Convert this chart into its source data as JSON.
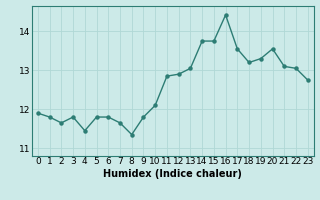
{
  "x": [
    0,
    1,
    2,
    3,
    4,
    5,
    6,
    7,
    8,
    9,
    10,
    11,
    12,
    13,
    14,
    15,
    16,
    17,
    18,
    19,
    20,
    21,
    22,
    23
  ],
  "y": [
    11.9,
    11.8,
    11.65,
    11.8,
    11.45,
    11.8,
    11.8,
    11.65,
    11.35,
    11.8,
    12.1,
    12.85,
    12.9,
    13.05,
    13.75,
    13.75,
    14.42,
    13.55,
    13.2,
    13.3,
    13.55,
    13.1,
    13.05,
    12.75
  ],
  "line_color": "#2d7d74",
  "bg_color": "#cceae8",
  "grid_color": "#b0d8d5",
  "xlabel": "Humidex (Indice chaleur)",
  "ylim": [
    10.8,
    14.65
  ],
  "yticks": [
    11,
    12,
    13,
    14
  ],
  "xticks": [
    0,
    1,
    2,
    3,
    4,
    5,
    6,
    7,
    8,
    9,
    10,
    11,
    12,
    13,
    14,
    15,
    16,
    17,
    18,
    19,
    20,
    21,
    22,
    23
  ],
  "label_fontsize": 7,
  "tick_fontsize": 6.5
}
